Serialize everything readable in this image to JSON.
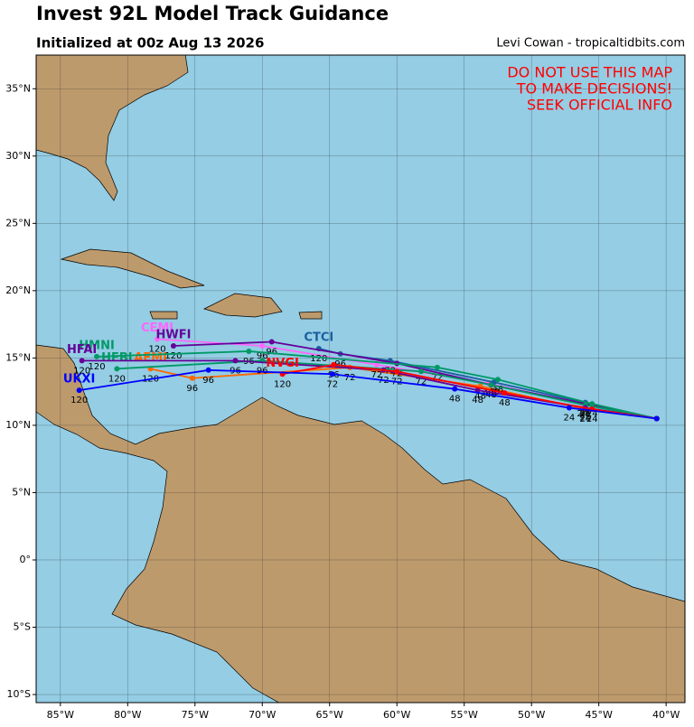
{
  "chart_data": {
    "type": "track_map",
    "title": "Invest 92L Model Track Guidance",
    "subtitle": "Initialized at 00z Aug 13 2026",
    "credit": "Levi Cowan - tropicaltidbits.com",
    "warning": [
      "DO NOT USE THIS MAP",
      "TO MAKE DECISIONS!",
      "SEEK OFFICIAL INFO"
    ],
    "xlim": [
      -86.8,
      -38.6
    ],
    "ylim": [
      -10.6,
      37.5
    ],
    "grid": true,
    "xticks": [
      {
        "value": -85,
        "label": "85°W"
      },
      {
        "value": -80,
        "label": "80°W"
      },
      {
        "value": -75,
        "label": "75°W"
      },
      {
        "value": -70,
        "label": "70°W"
      },
      {
        "value": -65,
        "label": "65°W"
      },
      {
        "value": -60,
        "label": "60°W"
      },
      {
        "value": -55,
        "label": "55°W"
      },
      {
        "value": -50,
        "label": "50°W"
      },
      {
        "value": -45,
        "label": "45°W"
      },
      {
        "value": -40,
        "label": "40°W"
      }
    ],
    "yticks": [
      {
        "value": -10,
        "label": "10°S"
      },
      {
        "value": -5,
        "label": "5°S"
      },
      {
        "value": 0,
        "label": "0°"
      },
      {
        "value": 5,
        "label": "5°N"
      },
      {
        "value": 10,
        "label": "10°N"
      },
      {
        "value": 15,
        "label": "15°N"
      },
      {
        "value": 20,
        "label": "20°N"
      },
      {
        "value": 25,
        "label": "25°N"
      },
      {
        "value": 30,
        "label": "30°N"
      },
      {
        "value": 35,
        "label": "35°N"
      }
    ],
    "series": [
      {
        "name": "AEMI",
        "color": "#ff6600",
        "lon": [
          -40.7,
          -46,
          -53.8,
          -63.5,
          -75.2,
          -78.3
        ],
        "lat": [
          10.5,
          11.2,
          12.9,
          14.3,
          13.5,
          14.2
        ],
        "hours": [
          null,
          24,
          48,
          72,
          96,
          120
        ]
      },
      {
        "name": "CEMI",
        "color": "#ff66ff",
        "lon": [
          -40.7,
          -46.2,
          -53.2,
          -61.5,
          -70,
          -77.8
        ],
        "lat": [
          10.5,
          11.6,
          13.1,
          14.5,
          15.9,
          16.4
        ],
        "hours": [
          null,
          24,
          48,
          72,
          96,
          120
        ]
      },
      {
        "name": "CTCI",
        "color": "#1a5fa0",
        "lon": [
          -40.7,
          -46,
          -52.8,
          -60.5,
          -64.2,
          -65.8
        ],
        "lat": [
          10.5,
          11.7,
          13.2,
          14.8,
          15.3,
          15.7
        ],
        "hours": [
          null,
          24,
          48,
          72,
          96,
          120
        ]
      },
      {
        "name": "HWFI",
        "color": "#660099",
        "lon": [
          -40.7,
          -46,
          -53,
          -60,
          -69.3,
          -76.6
        ],
        "lat": [
          10.5,
          11.6,
          13.0,
          14.6,
          16.2,
          15.9
        ],
        "hours": [
          null,
          24,
          48,
          72,
          96,
          120
        ]
      },
      {
        "name": "HMNI",
        "color": "#009966",
        "lon": [
          -40.7,
          -45.5,
          -52.5,
          -57,
          -71,
          -82.3
        ],
        "lat": [
          10.5,
          11.6,
          13.4,
          14.3,
          15.5,
          15.1
        ],
        "hours": [
          null,
          24,
          48,
          72,
          96,
          120
        ]
      },
      {
        "name": "HFBI",
        "color": "#009966",
        "lon": [
          -40.7,
          -46,
          -53,
          -58.2,
          -70,
          -80.8
        ],
        "lat": [
          10.5,
          11.5,
          13.0,
          14.0,
          14.8,
          14.2
        ],
        "hours": [
          null,
          24,
          48,
          72,
          96,
          120
        ]
      },
      {
        "name": "HFAI",
        "color": "#660099",
        "lon": [
          -40.7,
          -46,
          -54,
          -61,
          -72,
          -83.4
        ],
        "lat": [
          10.5,
          11.3,
          12.6,
          14.1,
          14.8,
          14.8
        ],
        "hours": [
          null,
          24,
          48,
          72,
          96,
          120
        ]
      },
      {
        "name": "NVGI",
        "color": "#ff0000",
        "lon": [
          -40.7,
          -45.5,
          -52,
          -60,
          -64.7,
          -68.5
        ],
        "lat": [
          10.5,
          11.2,
          12.4,
          14.0,
          14.5,
          13.8
        ],
        "hours": [
          null,
          24,
          48,
          72,
          96,
          120
        ]
      },
      {
        "name": "UKXI",
        "color": "#0000ff",
        "lon": [
          -40.7,
          -47.2,
          -55.7,
          -64.8,
          -74,
          -83.6
        ],
        "lat": [
          10.5,
          11.3,
          12.7,
          13.8,
          14.1,
          12.6
        ],
        "hours": [
          null,
          24,
          48,
          72,
          96,
          120
        ]
      }
    ]
  }
}
